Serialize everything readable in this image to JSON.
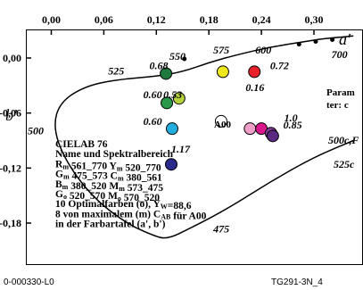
{
  "chart_data": {
    "type": "scatter",
    "title": "CIELAB 76",
    "xlabel": "a'",
    "ylabel": "b'",
    "xlim": [
      -0.03,
      0.345
    ],
    "ylim": [
      -0.215,
      0.04
    ],
    "x_ticks": [
      "0,00",
      "0,06",
      "0,12",
      "0,18",
      "0,24",
      "0,30"
    ],
    "y_ticks": [
      "0,00",
      "-0,06",
      "-0,12",
      "-0,18"
    ],
    "grid": false,
    "spectral_locus": [
      [
        0.345,
        0.024
      ],
      [
        0.31,
        0.021
      ],
      [
        0.29,
        0.018
      ],
      [
        0.25,
        0.012
      ],
      [
        0.21,
        0.003
      ],
      [
        0.18,
        -0.005
      ],
      [
        0.15,
        -0.015
      ],
      [
        0.12,
        -0.02
      ],
      [
        0.08,
        -0.023
      ],
      [
        0.04,
        -0.03
      ],
      [
        0.01,
        -0.048
      ],
      [
        0.002,
        -0.075
      ],
      [
        0.015,
        -0.11
      ],
      [
        0.045,
        -0.15
      ],
      [
        0.085,
        -0.18
      ],
      [
        0.115,
        -0.193
      ],
      [
        0.132,
        -0.198
      ],
      [
        0.16,
        -0.185
      ],
      [
        0.2,
        -0.165
      ],
      [
        0.25,
        -0.135
      ],
      [
        0.3,
        -0.108
      ],
      [
        0.345,
        -0.09
      ]
    ],
    "locus_markers": [
      [
        0.321,
        0.02
      ],
      [
        0.302,
        0.018
      ],
      [
        0.283,
        0.015
      ],
      [
        0.152,
        -0.001
      ]
    ],
    "wavelength_labels": [
      {
        "text": "700",
        "x": 0.32,
        "y": 0.0
      },
      {
        "text": "600",
        "x": 0.233,
        "y": 0.005
      },
      {
        "text": "575",
        "x": 0.185,
        "y": 0.005
      },
      {
        "text": "550",
        "x": 0.135,
        "y": -0.002
      },
      {
        "text": "525",
        "x": 0.065,
        "y": -0.018
      },
      {
        "text": "500",
        "x": -0.027,
        "y": -0.083
      },
      {
        "text": "475",
        "x": 0.185,
        "y": -0.19
      }
    ],
    "value_labels": [
      {
        "text": "0.68",
        "x": 0.112,
        "y": -0.012,
        "color": "#000000"
      },
      {
        "text": "0.72",
        "x": 0.25,
        "y": -0.012,
        "color": "#000000"
      },
      {
        "text": "0.16",
        "x": 0.222,
        "y": -0.036,
        "color": "#000000"
      },
      {
        "text": "0.60",
        "x": 0.105,
        "y": -0.044,
        "color": "#000000"
      },
      {
        "text": "0.53",
        "x": 0.128,
        "y": -0.044,
        "color": "#000000"
      },
      {
        "text": "0.60",
        "x": 0.105,
        "y": -0.073,
        "color": "#000000"
      },
      {
        "text": "1.0",
        "x": 0.266,
        "y": -0.069,
        "color": "#000000"
      },
      {
        "text": "0.85",
        "x": 0.265,
        "y": -0.077,
        "color": "#000000"
      },
      {
        "text": "1.17",
        "x": 0.137,
        "y": -0.103,
        "color": "#000000"
      }
    ],
    "points": [
      {
        "name": "red",
        "x": 0.232,
        "y": -0.015,
        "color": "#e8202a"
      },
      {
        "name": "yellow",
        "x": 0.196,
        "y": -0.015,
        "color": "#f0e81c"
      },
      {
        "name": "dark-green",
        "x": 0.131,
        "y": -0.017,
        "color": "#1e7a3c"
      },
      {
        "name": "yellow-green",
        "x": 0.146,
        "y": -0.044,
        "color": "#b4d23c"
      },
      {
        "name": "green",
        "x": 0.132,
        "y": -0.049,
        "color": "#2a9a4a"
      },
      {
        "name": "cyan",
        "x": 0.138,
        "y": -0.077,
        "color": "#23aee0"
      },
      {
        "name": "white-A00",
        "x": 0.194,
        "y": -0.069,
        "color": "#ffffff"
      },
      {
        "name": "pink",
        "x": 0.227,
        "y": -0.077,
        "color": "#f0a0c8"
      },
      {
        "name": "magenta",
        "x": 0.24,
        "y": -0.077,
        "color": "#d8188c"
      },
      {
        "name": "purple",
        "x": 0.251,
        "y": -0.082,
        "color": "#8a3ca0"
      },
      {
        "name": "violet-dark",
        "x": 0.253,
        "y": -0.085,
        "color": "#5a2a82"
      },
      {
        "name": "blue",
        "x": 0.137,
        "y": -0.116,
        "color": "#2a2a8a"
      }
    ],
    "a00_label": "A00",
    "param_lines": [
      "Param",
      "ter: c"
    ],
    "right_labels": [
      "500c,F",
      "525c"
    ],
    "legend_lines": [
      {
        "text": "CIELAB 76"
      },
      {
        "text": "Name und Spektralbereich"
      },
      {
        "text": "R_m 561_770  Y_m 520_770"
      },
      {
        "text": "G_m 475_573  C_m 380_561"
      },
      {
        "text": "B_m 380_520  M_m 573_475"
      },
      {
        "text": "G_o 520_570  M_o 570_520"
      },
      {
        "text": "10 Optimalfarben (o), Y_W=88,6"
      },
      {
        "text": "8 von maximalem (m) C_AB für A00"
      },
      {
        "text": "in der Farbartafel (a', b')"
      }
    ],
    "footer_left": "0-000330-L0",
    "footer_right": "TG291-3N_4"
  }
}
